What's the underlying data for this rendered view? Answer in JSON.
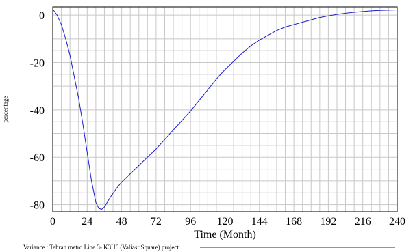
{
  "chart_data": {
    "type": "line",
    "xlabel": "Time (Month)",
    "ylabel": "percentage",
    "xlim": [
      0,
      240
    ],
    "ylim": [
      -83,
      3.5
    ],
    "x_ticks": [
      0,
      24,
      48,
      72,
      96,
      120,
      144,
      168,
      192,
      216,
      240
    ],
    "y_ticks": [
      0,
      -20,
      -40,
      -60,
      -80
    ],
    "grid": true,
    "series": [
      {
        "name": "Variance : Tehran metro Line 3- K3H6 (Valiasr Square) project",
        "color": "#1a1acc",
        "x": [
          0,
          3,
          6,
          9,
          12,
          15,
          18,
          21,
          24,
          27,
          30,
          32,
          34,
          36,
          40,
          44,
          48,
          54,
          60,
          66,
          72,
          78,
          84,
          90,
          96,
          102,
          108,
          114,
          120,
          126,
          132,
          138,
          144,
          150,
          156,
          162,
          168,
          174,
          180,
          186,
          192,
          198,
          204,
          210,
          216,
          222,
          228,
          234,
          240
        ],
        "y": [
          2.5,
          0,
          -4,
          -10,
          -17,
          -26,
          -35,
          -46,
          -58,
          -70,
          -79,
          -81.5,
          -82,
          -81,
          -77,
          -73.5,
          -70.5,
          -67,
          -63.5,
          -60,
          -56.5,
          -52.5,
          -48.5,
          -44.5,
          -40.5,
          -36,
          -31.5,
          -27,
          -23,
          -19.5,
          -16,
          -13,
          -10.5,
          -8.5,
          -6.5,
          -5,
          -4,
          -3,
          -2,
          -1,
          -0.3,
          0.3,
          0.8,
          1.2,
          1.5,
          1.8,
          2,
          2.1,
          2.2
        ]
      }
    ]
  }
}
